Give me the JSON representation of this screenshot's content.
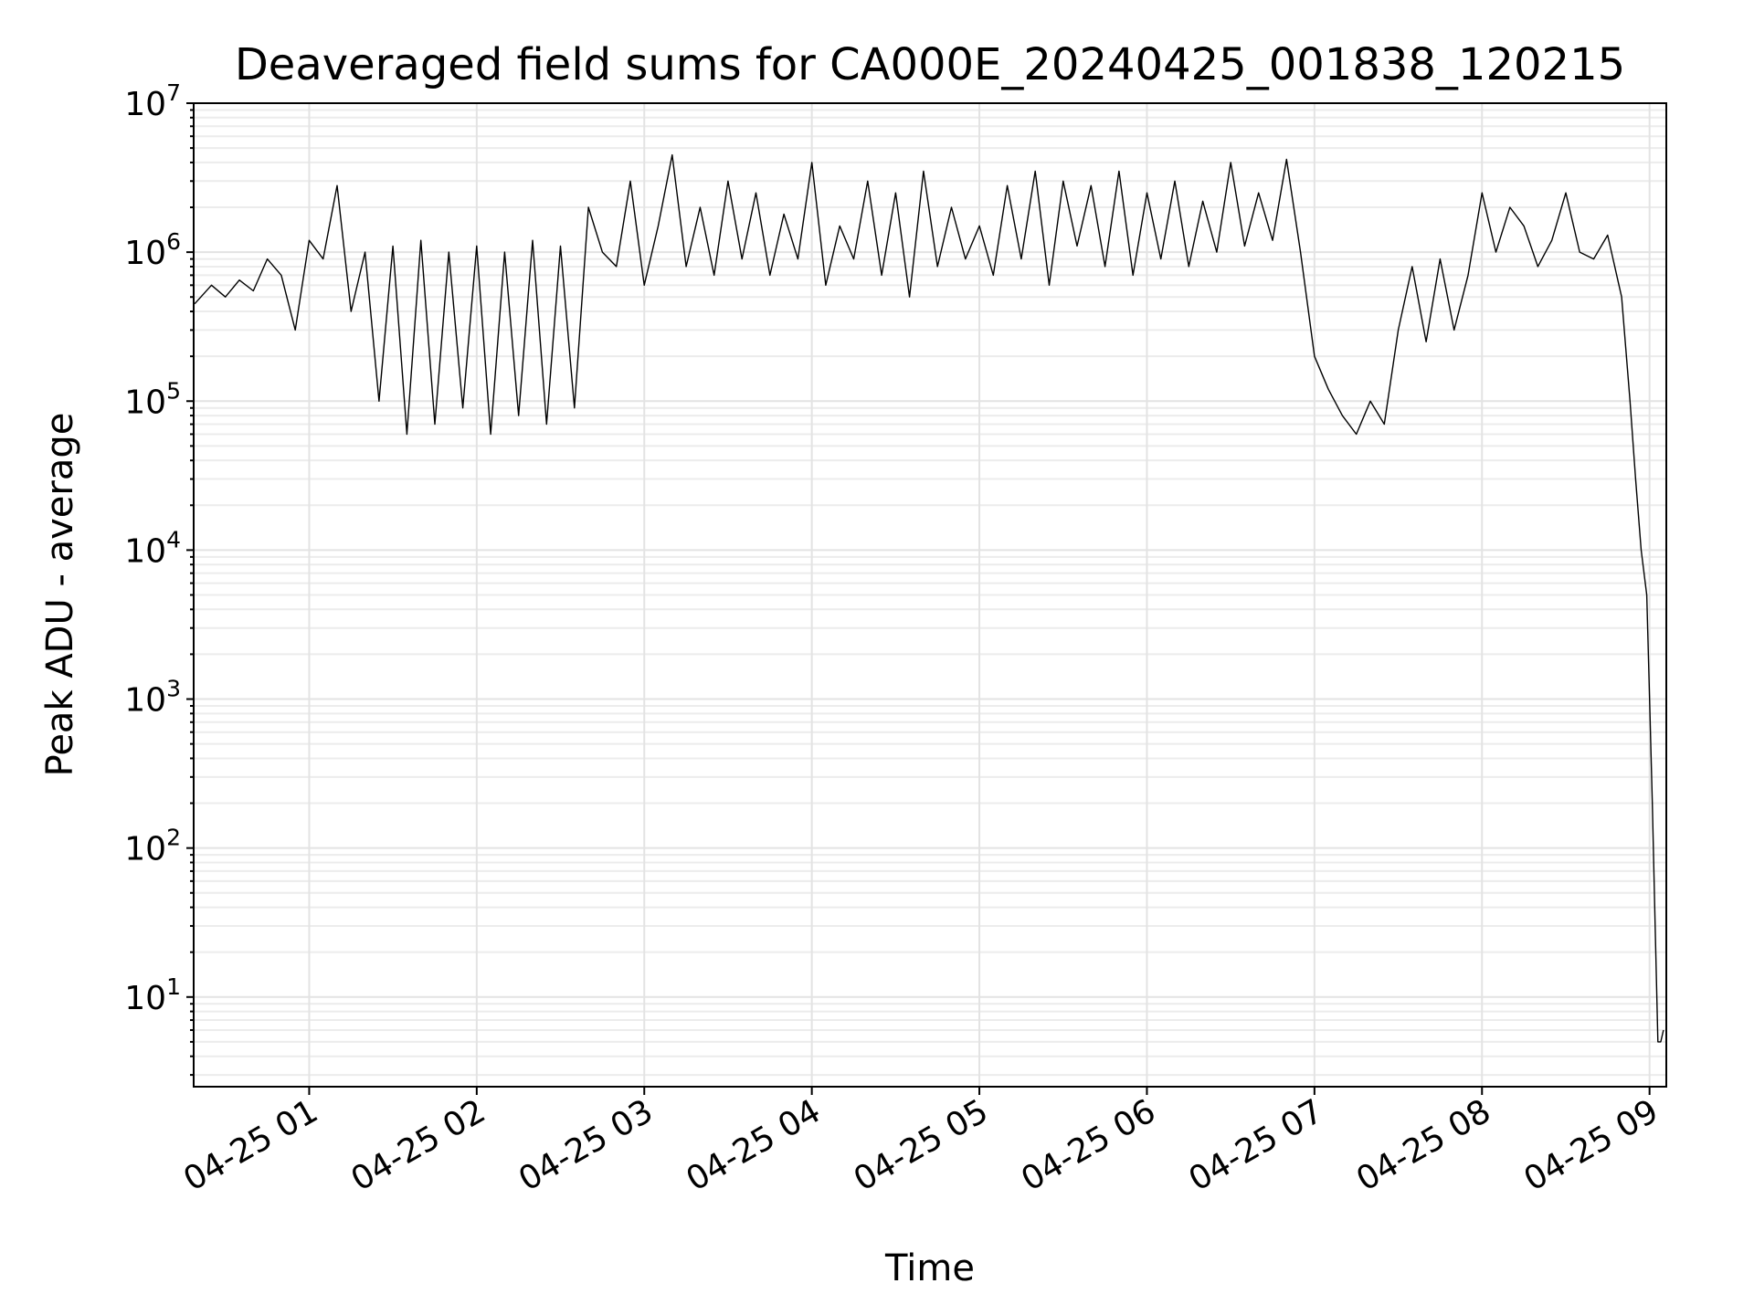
{
  "chart_data": {
    "type": "line",
    "title": "Deaveraged field sums for CA000E_20240425_001838_120215",
    "xlabel": "Time",
    "ylabel": "Peak ADU - average",
    "yscale": "log",
    "ylim": [
      2.5,
      10000000
    ],
    "xlim": [
      "2024-04-25 00:18:38",
      "2024-04-25 09:06:00"
    ],
    "grid": true,
    "x_ticks": [
      {
        "t": "2024-04-25 01:00:00",
        "label": "04-25 01"
      },
      {
        "t": "2024-04-25 02:00:00",
        "label": "04-25 02"
      },
      {
        "t": "2024-04-25 03:00:00",
        "label": "04-25 03"
      },
      {
        "t": "2024-04-25 04:00:00",
        "label": "04-25 04"
      },
      {
        "t": "2024-04-25 05:00:00",
        "label": "04-25 05"
      },
      {
        "t": "2024-04-25 06:00:00",
        "label": "04-25 06"
      },
      {
        "t": "2024-04-25 07:00:00",
        "label": "04-25 07"
      },
      {
        "t": "2024-04-25 08:00:00",
        "label": "04-25 08"
      },
      {
        "t": "2024-04-25 09:00:00",
        "label": "04-25 09"
      }
    ],
    "y_ticks": [
      {
        "value": 10,
        "base": "10",
        "exp": "1"
      },
      {
        "value": 100,
        "base": "10",
        "exp": "2"
      },
      {
        "value": 1000,
        "base": "10",
        "exp": "3"
      },
      {
        "value": 10000,
        "base": "10",
        "exp": "4"
      },
      {
        "value": 100000,
        "base": "10",
        "exp": "5"
      },
      {
        "value": 1000000,
        "base": "10",
        "exp": "6"
      },
      {
        "value": 10000000,
        "base": "10",
        "exp": "7"
      }
    ],
    "series": [
      {
        "color": "#000000",
        "x": [
          "2024-04-25 00:19:00",
          "2024-04-25 00:25:00",
          "2024-04-25 00:30:00",
          "2024-04-25 00:35:00",
          "2024-04-25 00:40:00",
          "2024-04-25 00:45:00",
          "2024-04-25 00:50:00",
          "2024-04-25 00:55:00",
          "2024-04-25 01:00:00",
          "2024-04-25 01:05:00",
          "2024-04-25 01:10:00",
          "2024-04-25 01:15:00",
          "2024-04-25 01:20:00",
          "2024-04-25 01:25:00",
          "2024-04-25 01:30:00",
          "2024-04-25 01:35:00",
          "2024-04-25 01:40:00",
          "2024-04-25 01:45:00",
          "2024-04-25 01:50:00",
          "2024-04-25 01:55:00",
          "2024-04-25 02:00:00",
          "2024-04-25 02:05:00",
          "2024-04-25 02:10:00",
          "2024-04-25 02:15:00",
          "2024-04-25 02:20:00",
          "2024-04-25 02:25:00",
          "2024-04-25 02:30:00",
          "2024-04-25 02:35:00",
          "2024-04-25 02:40:00",
          "2024-04-25 02:45:00",
          "2024-04-25 02:50:00",
          "2024-04-25 02:55:00",
          "2024-04-25 03:00:00",
          "2024-04-25 03:05:00",
          "2024-04-25 03:10:00",
          "2024-04-25 03:15:00",
          "2024-04-25 03:20:00",
          "2024-04-25 03:25:00",
          "2024-04-25 03:30:00",
          "2024-04-25 03:35:00",
          "2024-04-25 03:40:00",
          "2024-04-25 03:45:00",
          "2024-04-25 03:50:00",
          "2024-04-25 03:55:00",
          "2024-04-25 04:00:00",
          "2024-04-25 04:05:00",
          "2024-04-25 04:10:00",
          "2024-04-25 04:15:00",
          "2024-04-25 04:20:00",
          "2024-04-25 04:25:00",
          "2024-04-25 04:30:00",
          "2024-04-25 04:35:00",
          "2024-04-25 04:40:00",
          "2024-04-25 04:45:00",
          "2024-04-25 04:50:00",
          "2024-04-25 04:55:00",
          "2024-04-25 05:00:00",
          "2024-04-25 05:05:00",
          "2024-04-25 05:10:00",
          "2024-04-25 05:15:00",
          "2024-04-25 05:20:00",
          "2024-04-25 05:25:00",
          "2024-04-25 05:30:00",
          "2024-04-25 05:35:00",
          "2024-04-25 05:40:00",
          "2024-04-25 05:45:00",
          "2024-04-25 05:50:00",
          "2024-04-25 05:55:00",
          "2024-04-25 06:00:00",
          "2024-04-25 06:05:00",
          "2024-04-25 06:10:00",
          "2024-04-25 06:15:00",
          "2024-04-25 06:20:00",
          "2024-04-25 06:25:00",
          "2024-04-25 06:30:00",
          "2024-04-25 06:35:00",
          "2024-04-25 06:40:00",
          "2024-04-25 06:45:00",
          "2024-04-25 06:50:00",
          "2024-04-25 06:55:00",
          "2024-04-25 07:00:00",
          "2024-04-25 07:05:00",
          "2024-04-25 07:10:00",
          "2024-04-25 07:15:00",
          "2024-04-25 07:20:00",
          "2024-04-25 07:25:00",
          "2024-04-25 07:30:00",
          "2024-04-25 07:35:00",
          "2024-04-25 07:40:00",
          "2024-04-25 07:45:00",
          "2024-04-25 07:50:00",
          "2024-04-25 07:55:00",
          "2024-04-25 08:00:00",
          "2024-04-25 08:05:00",
          "2024-04-25 08:10:00",
          "2024-04-25 08:15:00",
          "2024-04-25 08:20:00",
          "2024-04-25 08:25:00",
          "2024-04-25 08:30:00",
          "2024-04-25 08:35:00",
          "2024-04-25 08:40:00",
          "2024-04-25 08:45:00",
          "2024-04-25 08:50:00",
          "2024-04-25 08:53:00",
          "2024-04-25 08:55:00",
          "2024-04-25 08:57:00",
          "2024-04-25 08:59:00",
          "2024-04-25 09:00:00",
          "2024-04-25 09:01:00",
          "2024-04-25 09:02:00",
          "2024-04-25 09:03:00",
          "2024-04-25 09:04:00",
          "2024-04-25 09:05:00"
        ],
        "y": [
          450000,
          600000,
          500000,
          650000,
          550000,
          900000,
          700000,
          300000,
          1200000,
          900000,
          2800000,
          400000,
          1000000,
          100000,
          1100000,
          60000,
          1200000,
          70000,
          1000000,
          90000,
          1100000,
          60000,
          1000000,
          80000,
          1200000,
          70000,
          1100000,
          90000,
          2000000,
          1000000,
          800000,
          3000000,
          600000,
          1500000,
          4500000,
          800000,
          2000000,
          700000,
          3000000,
          900000,
          2500000,
          700000,
          1800000,
          900000,
          4000000,
          600000,
          1500000,
          900000,
          3000000,
          700000,
          2500000,
          500000,
          3500000,
          800000,
          2000000,
          900000,
          1500000,
          700000,
          2800000,
          900000,
          3500000,
          600000,
          3000000,
          1100000,
          2800000,
          800000,
          3500000,
          700000,
          2500000,
          900000,
          3000000,
          800000,
          2200000,
          1000000,
          4000000,
          1100000,
          2500000,
          1200000,
          4200000,
          1000000,
          200000,
          120000,
          80000,
          60000,
          100000,
          70000,
          300000,
          800000,
          250000,
          900000,
          300000,
          700000,
          2500000,
          1000000,
          2000000,
          1500000,
          800000,
          1200000,
          2500000,
          1000000,
          900000,
          1300000,
          500000,
          100000,
          30000,
          10000,
          5000,
          1000,
          200,
          30,
          5,
          5,
          6
        ]
      }
    ]
  }
}
